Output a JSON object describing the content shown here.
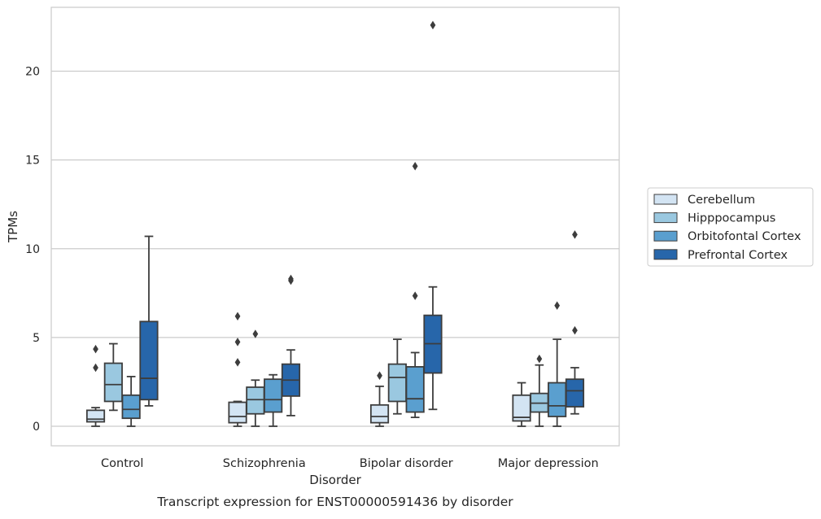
{
  "chart_data": {
    "type": "boxplot",
    "caption": "Transcript expression for ENST00000591436 by disorder",
    "xlabel": "Disorder",
    "ylabel": "TPMs",
    "ylim": [
      -1.1,
      23.6
    ],
    "yticks": [
      0,
      5,
      10,
      15,
      20
    ],
    "grid": "horizontal",
    "legend_position": "right",
    "categories": [
      "Control",
      "Schizophrenia",
      "Bipolar disorder",
      "Major depression"
    ],
    "series": [
      {
        "name": "Cerebellum",
        "color": "#d3e4f3",
        "boxes": [
          {
            "whisker_low": 0.0,
            "q1": 0.25,
            "median": 0.4,
            "q3": 0.9,
            "whisker_high": 1.05,
            "outliers": [
              3.3,
              4.35
            ]
          },
          {
            "whisker_low": 0.0,
            "q1": 0.2,
            "median": 0.55,
            "q3": 1.35,
            "whisker_high": 1.4,
            "outliers": [
              3.6,
              4.75,
              6.2
            ]
          },
          {
            "whisker_low": 0.0,
            "q1": 0.2,
            "median": 0.55,
            "q3": 1.2,
            "whisker_high": 2.25,
            "outliers": [
              2.85
            ]
          },
          {
            "whisker_low": 0.0,
            "q1": 0.3,
            "median": 0.5,
            "q3": 1.75,
            "whisker_high": 2.45,
            "outliers": []
          }
        ]
      },
      {
        "name": "Hipppocampus",
        "color": "#9ac8e0",
        "boxes": [
          {
            "whisker_low": 0.9,
            "q1": 1.4,
            "median": 2.35,
            "q3": 3.55,
            "whisker_high": 4.65,
            "outliers": []
          },
          {
            "whisker_low": 0.0,
            "q1": 0.7,
            "median": 1.5,
            "q3": 2.2,
            "whisker_high": 2.6,
            "outliers": [
              5.2
            ]
          },
          {
            "whisker_low": 0.7,
            "q1": 1.4,
            "median": 2.75,
            "q3": 3.5,
            "whisker_high": 4.9,
            "outliers": []
          },
          {
            "whisker_low": 0.0,
            "q1": 0.8,
            "median": 1.3,
            "q3": 1.85,
            "whisker_high": 3.45,
            "outliers": [
              3.8
            ]
          }
        ]
      },
      {
        "name": "Orbitofontal Cortex",
        "color": "#5a9fcf",
        "boxes": [
          {
            "whisker_low": 0.0,
            "q1": 0.45,
            "median": 0.95,
            "q3": 1.75,
            "whisker_high": 2.8,
            "outliers": []
          },
          {
            "whisker_low": 0.0,
            "q1": 0.8,
            "median": 1.5,
            "q3": 2.65,
            "whisker_high": 2.9,
            "outliers": []
          },
          {
            "whisker_low": 0.5,
            "q1": 0.8,
            "median": 1.55,
            "q3": 3.35,
            "whisker_high": 4.15,
            "outliers": [
              7.35,
              14.65
            ]
          },
          {
            "whisker_low": 0.0,
            "q1": 0.55,
            "median": 1.15,
            "q3": 2.45,
            "whisker_high": 4.9,
            "outliers": [
              6.8
            ]
          }
        ]
      },
      {
        "name": "Prefrontal Cortex",
        "color": "#2766aa",
        "boxes": [
          {
            "whisker_low": 1.15,
            "q1": 1.5,
            "median": 2.7,
            "q3": 5.9,
            "whisker_high": 10.7,
            "outliers": []
          },
          {
            "whisker_low": 0.6,
            "q1": 1.7,
            "median": 2.6,
            "q3": 3.5,
            "whisker_high": 4.3,
            "outliers": [
              8.2,
              8.3
            ]
          },
          {
            "whisker_low": 0.95,
            "q1": 3.0,
            "median": 4.65,
            "q3": 6.25,
            "whisker_high": 7.85,
            "outliers": [
              22.6
            ]
          },
          {
            "whisker_low": 0.7,
            "q1": 1.1,
            "median": 2.0,
            "q3": 2.65,
            "whisker_high": 3.3,
            "outliers": [
              5.4,
              10.8
            ]
          }
        ]
      }
    ]
  }
}
